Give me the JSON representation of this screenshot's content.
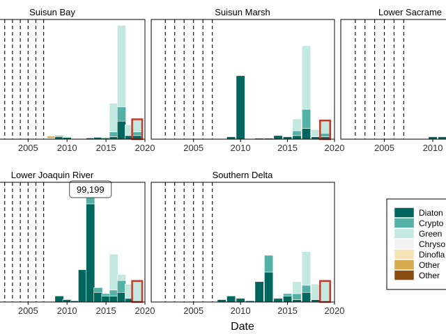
{
  "chart_data": {
    "type": "bar",
    "stacked": true,
    "layout": "faceted 2 rows x 3 columns, partially cropped",
    "xlabel": "Date",
    "ylabel": "",
    "x_ticks": [
      2005,
      2010,
      2015,
      2020
    ],
    "xlim": [
      2000.5,
      2020
    ],
    "reference_lines": [
      2002,
      2003,
      2004,
      2005,
      2006,
      2007
    ],
    "highlight_year": 2019,
    "highlight_color": "#c0392b",
    "series": [
      {
        "name": "Diatoms",
        "color": "#00665e"
      },
      {
        "name": "Cryptophytes",
        "color": "#55b0a5"
      },
      {
        "name": "Green Algae",
        "color": "#c3e8e0"
      },
      {
        "name": "Chrysophytes",
        "color": "#f2f2f2"
      },
      {
        "name": "Dinoflagellates",
        "color": "#f5e2b5"
      },
      {
        "name": "Other Flagellates",
        "color": "#d5a94e"
      },
      {
        "name": "Other Taxa",
        "color": "#8a4d0f"
      }
    ],
    "legend": {
      "position": "right",
      "visible_labels": [
        "Diaton",
        "Crypto",
        "Green",
        "Chryso",
        "Dinofla",
        "Other",
        "Other"
      ]
    },
    "panels": [
      {
        "title": "Suisun Bay",
        "ylim": [
          0,
          100
        ],
        "bars": [
          {
            "x": 2008,
            "values": [
              0,
              0,
              0,
              0,
              1,
              1.5,
              0
            ]
          },
          {
            "x": 2009,
            "values": [
              2,
              1,
              0,
              0,
              0,
              0,
              0
            ]
          },
          {
            "x": 2010,
            "values": [
              1.5,
              0.5,
              0,
              0,
              0,
              0,
              0
            ]
          },
          {
            "x": 2013,
            "values": [
              1,
              0,
              0,
              0,
              0,
              0,
              0
            ]
          },
          {
            "x": 2014,
            "values": [
              1.5,
              0,
              0,
              0,
              0,
              0,
              0
            ]
          },
          {
            "x": 2015,
            "values": [
              1,
              0.5,
              0,
              0,
              0,
              0,
              0
            ]
          },
          {
            "x": 2016,
            "values": [
              2,
              4,
              24,
              0,
              0,
              0,
              0
            ]
          },
          {
            "x": 2017,
            "values": [
              15,
              12,
              68,
              0,
              0,
              0,
              0
            ]
          },
          {
            "x": 2018,
            "values": [
              3,
              0,
              9,
              0,
              0,
              0,
              0
            ]
          },
          {
            "x": 2019,
            "values": [
              3,
              3,
              10,
              0,
              0,
              0,
              0
            ]
          }
        ]
      },
      {
        "title": "Suisun Marsh",
        "ylim": [
          0,
          100
        ],
        "bars": [
          {
            "x": 2008,
            "values": [
              0,
              0,
              0,
              0,
              0,
              0,
              0
            ]
          },
          {
            "x": 2009,
            "values": [
              2,
              0,
              0,
              0,
              0,
              0,
              0
            ]
          },
          {
            "x": 2010,
            "values": [
              53,
              0,
              0,
              0,
              0,
              0,
              0
            ]
          },
          {
            "x": 2012,
            "values": [
              0.8,
              0,
              0,
              0,
              0,
              0,
              0
            ]
          },
          {
            "x": 2013,
            "values": [
              0.8,
              0,
              0,
              0,
              0,
              0,
              0
            ]
          },
          {
            "x": 2014,
            "values": [
              3,
              0,
              0,
              0,
              0,
              0,
              0
            ]
          },
          {
            "x": 2015,
            "values": [
              2,
              0,
              0,
              0,
              0,
              0,
              0
            ]
          },
          {
            "x": 2016,
            "values": [
              3,
              4,
              10,
              0,
              0,
              0,
              0
            ]
          },
          {
            "x": 2017,
            "values": [
              9,
              16,
              53,
              0,
              0,
              0,
              0
            ]
          },
          {
            "x": 2018,
            "values": [
              2,
              0,
              6,
              0,
              0,
              0,
              0
            ]
          },
          {
            "x": 2019,
            "values": [
              2,
              3,
              10,
              0,
              0,
              0,
              0
            ]
          }
        ]
      },
      {
        "title": "Lower Sacrame",
        "ylim": [
          0,
          100
        ],
        "bars": [
          {
            "x": 2010,
            "values": [
              2,
              0,
              0,
              0,
              0,
              0,
              0
            ]
          },
          {
            "x": 2011,
            "values": [
              2,
              0,
              0,
              0,
              0,
              0,
              0
            ]
          },
          {
            "x": 2012,
            "values": [
              1,
              0,
              0,
              0,
              0,
              0,
              0
            ]
          },
          {
            "x": 2013,
            "values": [
              2,
              0,
              0,
              0,
              0,
              0,
              0
            ]
          }
        ]
      },
      {
        "title": "Lower Joaquin River",
        "ylim": [
          0,
          100
        ],
        "annotation": {
          "x": 2013,
          "text": "99,199"
        },
        "bars": [
          {
            "x": 2009,
            "values": [
              5,
              0,
              0,
              0,
              0,
              0,
              0
            ]
          },
          {
            "x": 2010,
            "values": [
              2,
              0,
              0,
              0,
              0,
              0,
              0
            ]
          },
          {
            "x": 2011,
            "values": [
              1,
              0,
              0,
              0,
              0,
              0,
              0
            ]
          },
          {
            "x": 2012,
            "values": [
              27,
              0,
              0,
              0,
              0,
              0,
              0
            ]
          },
          {
            "x": 2013,
            "values": [
              82,
              20,
              0,
              0,
              0,
              0,
              0
            ]
          },
          {
            "x": 2014,
            "values": [
              8,
              4,
              0,
              0,
              0,
              0,
              0
            ]
          },
          {
            "x": 2015,
            "values": [
              5,
              2,
              0,
              0,
              0,
              0,
              0
            ]
          },
          {
            "x": 2016,
            "values": [
              5,
              5,
              30,
              0,
              0,
              0,
              0
            ]
          },
          {
            "x": 2017,
            "values": [
              8,
              10,
              5,
              0,
              0,
              0,
              0
            ]
          },
          {
            "x": 2018,
            "values": [
              3,
              0,
              12,
              0,
              0,
              0,
              0
            ]
          },
          {
            "x": 2019,
            "values": [
              0,
              0,
              17,
              0,
              0,
              0,
              0
            ]
          }
        ]
      },
      {
        "title": "Southern Delta",
        "ylim": [
          0,
          100
        ],
        "bars": [
          {
            "x": 2008,
            "values": [
              2,
              0,
              0,
              0,
              0,
              0,
              0
            ]
          },
          {
            "x": 2009,
            "values": [
              5,
              0,
              0,
              0,
              0,
              0,
              0
            ]
          },
          {
            "x": 2010,
            "values": [
              3,
              0,
              0,
              0,
              0,
              0,
              0
            ]
          },
          {
            "x": 2011,
            "values": [
              1,
              0,
              0,
              0,
              0,
              0,
              0
            ]
          },
          {
            "x": 2012,
            "values": [
              17,
              0,
              0,
              0,
              0,
              0,
              0
            ]
          },
          {
            "x": 2013,
            "values": [
              25,
              14,
              0,
              0,
              0,
              0,
              0
            ]
          },
          {
            "x": 2014,
            "values": [
              3,
              0,
              0,
              0,
              0,
              0,
              0
            ]
          },
          {
            "x": 2015,
            "values": [
              5,
              2,
              0,
              0,
              0,
              0,
              0
            ]
          },
          {
            "x": 2016,
            "values": [
              2,
              5,
              10,
              0,
              0,
              0,
              0
            ]
          },
          {
            "x": 2017,
            "values": [
              8,
              6,
              28,
              0,
              0,
              0,
              0
            ]
          },
          {
            "x": 2018,
            "values": [
              2,
              0,
              13,
              0,
              0,
              0,
              0
            ]
          },
          {
            "x": 2019,
            "values": [
              0,
              0,
              17,
              0,
              0,
              0,
              0
            ]
          }
        ]
      }
    ]
  }
}
